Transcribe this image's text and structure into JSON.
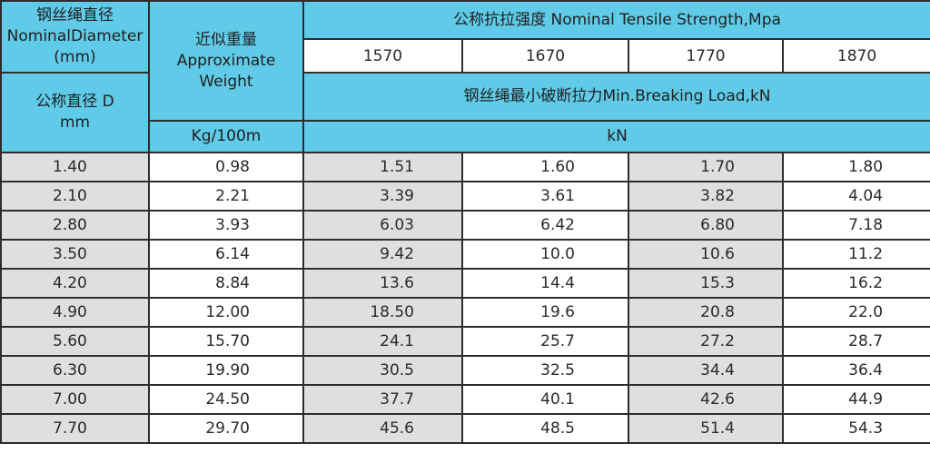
{
  "header": {
    "diameter_cn": "钢丝绳直径",
    "diameter_en": "NominalDiameter",
    "diameter_unit": "(mm)",
    "nominal_cn": "公称直径 D",
    "nominal_unit": "mm",
    "weight_cn": "近似重量",
    "weight_en1": "Approximate",
    "weight_en2": "Weight",
    "weight_unit": "Kg/100m",
    "strength_title": "公称抗拉强度 Nominal Tensile Strength,Mpa",
    "grades": [
      "1570",
      "1670",
      "1770",
      "1870"
    ],
    "breaking_title": "钢丝绳最小破断拉力Min.Breaking Load,kN",
    "breaking_unit": "kN"
  },
  "rows": [
    [
      "1.40",
      "0.98",
      "1.51",
      "1.60",
      "1.70",
      "1.80"
    ],
    [
      "2.10",
      "2.21",
      "3.39",
      "3.61",
      "3.82",
      "4.04"
    ],
    [
      "2.80",
      "3.93",
      "6.03",
      "6.42",
      "6.80",
      "7.18"
    ],
    [
      "3.50",
      "6.14",
      "9.42",
      "10.0",
      "10.6",
      "11.2"
    ],
    [
      "4.20",
      "8.84",
      "13.6",
      "14.4",
      "15.3",
      "16.2"
    ],
    [
      "4.90",
      "12.00",
      "18.50",
      "19.6",
      "20.8",
      "22.0"
    ],
    [
      "5.60",
      "15.70",
      "24.1",
      "25.7",
      "27.2",
      "28.7"
    ],
    [
      "6.30",
      "19.90",
      "30.5",
      "32.5",
      "34.4",
      "36.4"
    ],
    [
      "7.00",
      "24.50",
      "37.7",
      "40.1",
      "42.6",
      "44.9"
    ],
    [
      "7.70",
      "29.70",
      "45.6",
      "48.5",
      "51.4",
      "54.3"
    ]
  ],
  "colors": {
    "header_bg": "#5fcbe8",
    "grey_column": "#e0dfdf",
    "border": "#2d2d2d"
  }
}
